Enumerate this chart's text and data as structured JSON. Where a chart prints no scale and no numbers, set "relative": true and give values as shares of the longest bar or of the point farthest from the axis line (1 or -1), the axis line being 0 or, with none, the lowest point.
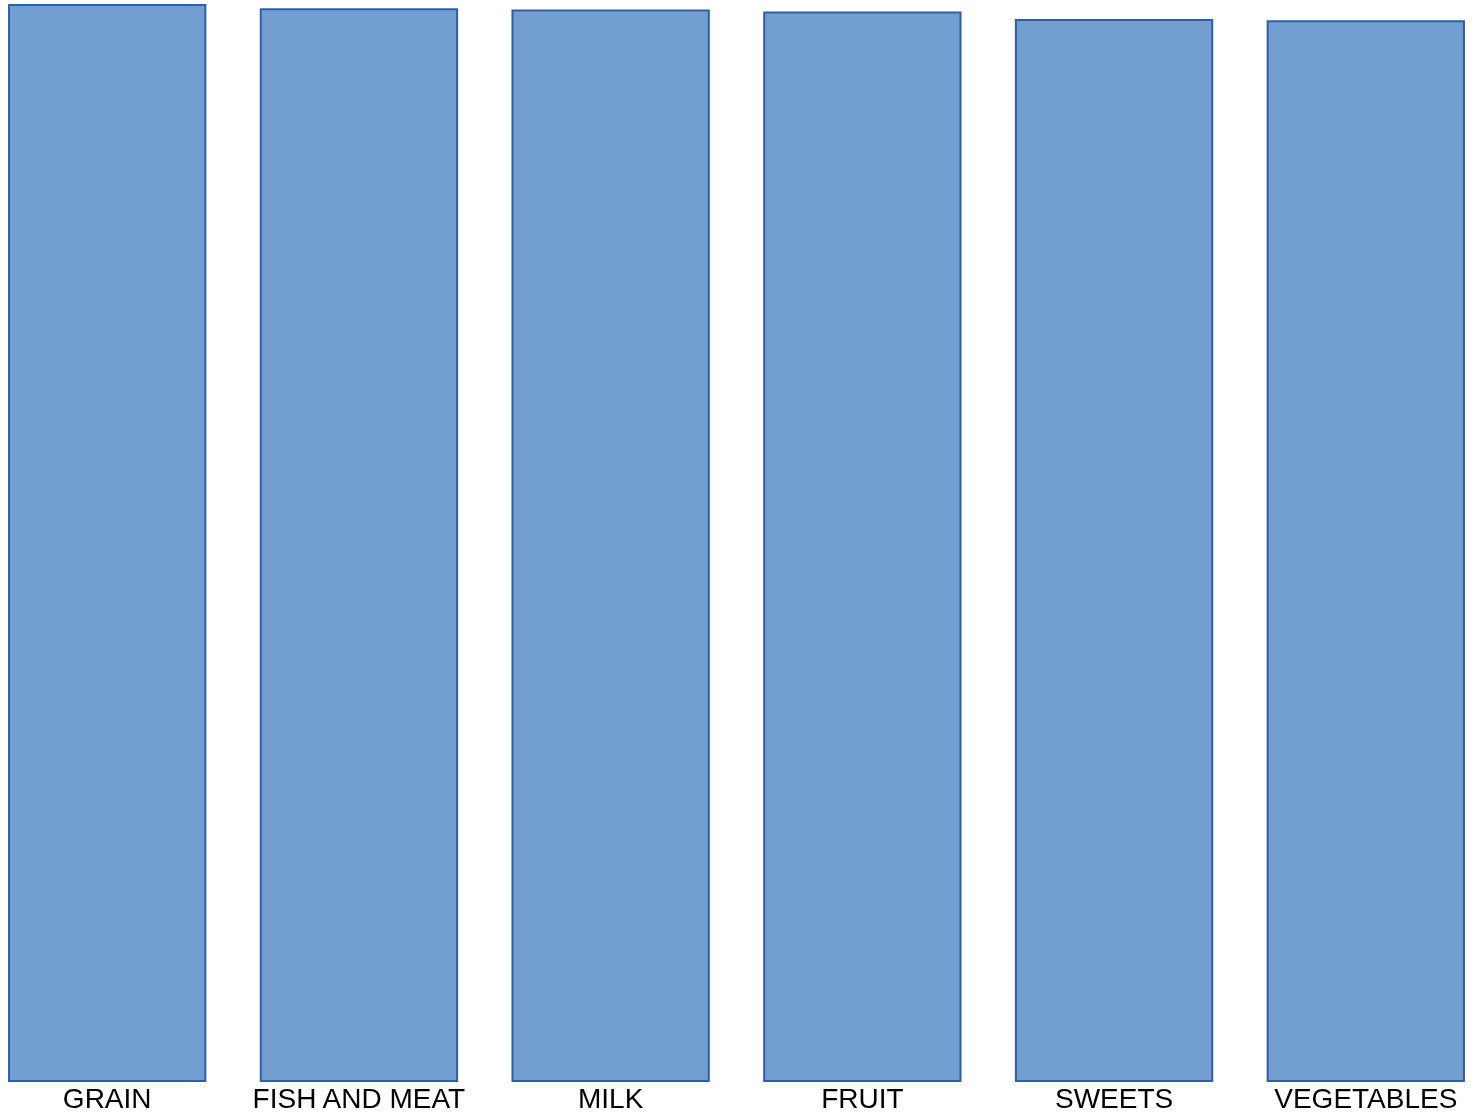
{
  "chart_data": {
    "type": "bar",
    "relative": true,
    "categories": [
      "GRAIN",
      "FISH AND MEAT",
      "MILK",
      "FRUIT",
      "SWEETS",
      "VEGETABLES"
    ],
    "values": [
      1,
      0.996,
      0.995,
      0.993,
      0.986,
      0.985
    ],
    "color": "#729fcf"
  }
}
